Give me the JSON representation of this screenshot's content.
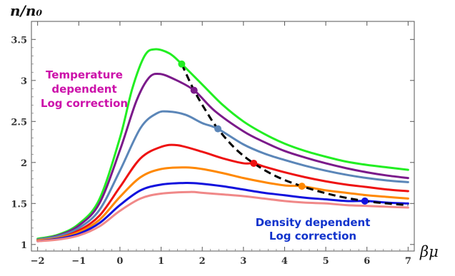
{
  "chart_data": {
    "type": "line",
    "title": "",
    "xlabel": "βμ",
    "ylabel": "n/n₀",
    "xlim": [
      -2.15,
      7.15
    ],
    "ylim": [
      0.92,
      3.72
    ],
    "x_ticks": [
      "−2",
      "−1",
      "0",
      "1",
      "2",
      "3",
      "4",
      "5",
      "6",
      "7"
    ],
    "x_tick_values": [
      -2,
      -1,
      0,
      1,
      2,
      3,
      4,
      5,
      6,
      7
    ],
    "y_ticks": [
      "1",
      "1.5",
      "2",
      "2.5",
      "3",
      "3.5"
    ],
    "y_tick_values": [
      1,
      1.5,
      2,
      2.5,
      3,
      3.5
    ],
    "grid": false,
    "series": [
      {
        "color": "#22ee22",
        "points": [
          [
            -2,
            1.07
          ],
          [
            -1.5,
            1.12
          ],
          [
            -1,
            1.25
          ],
          [
            -0.5,
            1.55
          ],
          [
            0,
            2.3
          ],
          [
            0.3,
            2.9
          ],
          [
            0.6,
            3.3
          ],
          [
            0.85,
            3.38
          ],
          [
            1.2,
            3.33
          ],
          [
            1.5,
            3.2
          ],
          [
            2,
            2.95
          ],
          [
            2.5,
            2.7
          ],
          [
            3,
            2.5
          ],
          [
            3.5,
            2.35
          ],
          [
            4,
            2.23
          ],
          [
            4.5,
            2.14
          ],
          [
            5,
            2.07
          ],
          [
            5.5,
            2.01
          ],
          [
            6,
            1.97
          ],
          [
            6.5,
            1.94
          ],
          [
            7,
            1.91
          ]
        ]
      },
      {
        "color": "#7b1a8a",
        "points": [
          [
            -2,
            1.06
          ],
          [
            -1.5,
            1.11
          ],
          [
            -1,
            1.23
          ],
          [
            -0.5,
            1.5
          ],
          [
            0,
            2.15
          ],
          [
            0.4,
            2.75
          ],
          [
            0.7,
            3.03
          ],
          [
            0.95,
            3.08
          ],
          [
            1.3,
            3.02
          ],
          [
            1.8,
            2.88
          ],
          [
            2.3,
            2.63
          ],
          [
            3,
            2.38
          ],
          [
            3.5,
            2.25
          ],
          [
            4,
            2.14
          ],
          [
            4.5,
            2.06
          ],
          [
            5,
            1.99
          ],
          [
            5.5,
            1.93
          ],
          [
            6,
            1.88
          ],
          [
            6.5,
            1.84
          ],
          [
            7,
            1.81
          ]
        ]
      },
      {
        "color": "#5b86b8",
        "points": [
          [
            -2,
            1.06
          ],
          [
            -1.5,
            1.1
          ],
          [
            -1,
            1.2
          ],
          [
            -0.5,
            1.42
          ],
          [
            0,
            1.9
          ],
          [
            0.5,
            2.42
          ],
          [
            0.9,
            2.6
          ],
          [
            1.2,
            2.62
          ],
          [
            1.6,
            2.58
          ],
          [
            2,
            2.48
          ],
          [
            2.38,
            2.41
          ],
          [
            3,
            2.22
          ],
          [
            3.5,
            2.11
          ],
          [
            4,
            2.03
          ],
          [
            4.5,
            1.96
          ],
          [
            5,
            1.9
          ],
          [
            5.5,
            1.85
          ],
          [
            6,
            1.81
          ],
          [
            6.5,
            1.78
          ],
          [
            7,
            1.76
          ]
        ]
      },
      {
        "color": "#ee1111",
        "points": [
          [
            -2,
            1.05
          ],
          [
            -1.5,
            1.08
          ],
          [
            -1,
            1.17
          ],
          [
            -0.5,
            1.35
          ],
          [
            0,
            1.7
          ],
          [
            0.5,
            2.05
          ],
          [
            1,
            2.19
          ],
          [
            1.4,
            2.21
          ],
          [
            2,
            2.13
          ],
          [
            2.5,
            2.05
          ],
          [
            3,
            1.99
          ],
          [
            3.25,
            1.99
          ],
          [
            3.5,
            1.95
          ],
          [
            4,
            1.88
          ],
          [
            4.5,
            1.82
          ],
          [
            5,
            1.77
          ],
          [
            5.5,
            1.73
          ],
          [
            6,
            1.7
          ],
          [
            6.5,
            1.67
          ],
          [
            7,
            1.65
          ]
        ]
      },
      {
        "color": "#ff8800",
        "points": [
          [
            -2,
            1.05
          ],
          [
            -1.5,
            1.08
          ],
          [
            -1,
            1.15
          ],
          [
            -0.5,
            1.3
          ],
          [
            0,
            1.58
          ],
          [
            0.5,
            1.82
          ],
          [
            1,
            1.92
          ],
          [
            1.6,
            1.94
          ],
          [
            2,
            1.92
          ],
          [
            2.5,
            1.87
          ],
          [
            3,
            1.81
          ],
          [
            3.5,
            1.76
          ],
          [
            4,
            1.72
          ],
          [
            4.42,
            1.71
          ],
          [
            5,
            1.66
          ],
          [
            5.5,
            1.63
          ],
          [
            6,
            1.6
          ],
          [
            6.5,
            1.58
          ],
          [
            7,
            1.56
          ]
        ]
      },
      {
        "color": "#1111dd",
        "points": [
          [
            -2,
            1.04
          ],
          [
            -1.5,
            1.07
          ],
          [
            -1,
            1.13
          ],
          [
            -0.5,
            1.26
          ],
          [
            0,
            1.48
          ],
          [
            0.5,
            1.66
          ],
          [
            1,
            1.73
          ],
          [
            1.6,
            1.75
          ],
          [
            2,
            1.74
          ],
          [
            2.5,
            1.71
          ],
          [
            3,
            1.67
          ],
          [
            3.5,
            1.63
          ],
          [
            4,
            1.6
          ],
          [
            4.5,
            1.57
          ],
          [
            5,
            1.55
          ],
          [
            5.5,
            1.53
          ],
          [
            6,
            1.53
          ],
          [
            6.5,
            1.51
          ],
          [
            7,
            1.5
          ]
        ]
      },
      {
        "color": "#f08888",
        "points": [
          [
            -2,
            1.04
          ],
          [
            -1.5,
            1.06
          ],
          [
            -1,
            1.11
          ],
          [
            -0.5,
            1.22
          ],
          [
            0,
            1.41
          ],
          [
            0.5,
            1.56
          ],
          [
            1,
            1.62
          ],
          [
            1.7,
            1.64
          ],
          [
            2,
            1.63
          ],
          [
            2.5,
            1.61
          ],
          [
            3,
            1.59
          ],
          [
            3.5,
            1.56
          ],
          [
            4,
            1.53
          ],
          [
            4.5,
            1.51
          ],
          [
            5,
            1.5
          ],
          [
            5.5,
            1.48
          ],
          [
            6,
            1.47
          ],
          [
            6.5,
            1.46
          ],
          [
            7,
            1.45
          ]
        ]
      }
    ],
    "dashed_curve": {
      "color": "#000000",
      "points": [
        [
          1.5,
          3.2
        ],
        [
          1.8,
          2.88
        ],
        [
          2.1,
          2.62
        ],
        [
          2.38,
          2.41
        ],
        [
          2.8,
          2.17
        ],
        [
          3.25,
          1.99
        ],
        [
          3.8,
          1.83
        ],
        [
          4.42,
          1.71
        ],
        [
          5.2,
          1.6
        ],
        [
          5.95,
          1.53
        ],
        [
          6.5,
          1.5
        ],
        [
          7,
          1.48
        ]
      ]
    },
    "markers": [
      {
        "x": 1.5,
        "y": 3.2,
        "color": "#22ee22"
      },
      {
        "x": 1.8,
        "y": 2.88,
        "color": "#7b1a8a"
      },
      {
        "x": 2.38,
        "y": 2.41,
        "color": "#5b86b8"
      },
      {
        "x": 3.25,
        "y": 1.99,
        "color": "#ee1111"
      },
      {
        "x": 4.42,
        "y": 1.71,
        "color": "#ff8800"
      },
      {
        "x": 5.95,
        "y": 1.53,
        "color": "#1111dd"
      }
    ],
    "annotations": [
      {
        "lines": [
          "Temperature",
          "dependent",
          "Log correction"
        ],
        "color": "#cc11aa"
      },
      {
        "lines": [
          "Density dependent",
          "Log correction"
        ],
        "color": "#1133cc"
      }
    ]
  }
}
